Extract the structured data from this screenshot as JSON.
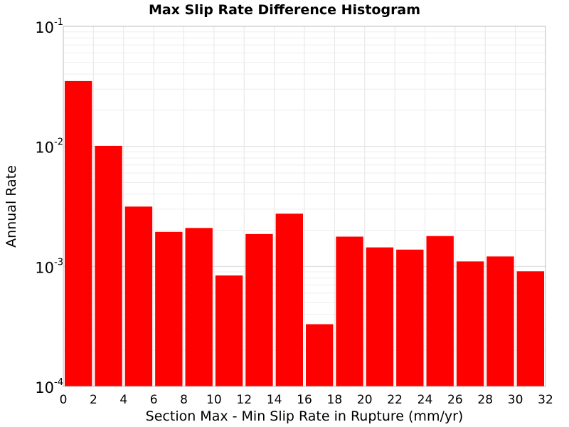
{
  "chart_data": {
    "type": "bar",
    "title": "Max Slip Rate Difference Histogram",
    "xlabel": "Section Max - Min Slip Rate in Rupture (mm/yr)",
    "ylabel": "Annual Rate",
    "y_scale": "log",
    "xlim": [
      0,
      32
    ],
    "ylim": [
      0.0001,
      0.1
    ],
    "bin_width": 2,
    "x": [
      1,
      3,
      5,
      7,
      9,
      11,
      13,
      15,
      17,
      19,
      21,
      23,
      25,
      27,
      29,
      31
    ],
    "values": [
      0.035,
      0.0101,
      0.00315,
      0.00194,
      0.00209,
      0.00084,
      0.00186,
      0.00275,
      0.00033,
      0.00177,
      0.00144,
      0.00138,
      0.00179,
      0.0011,
      0.00121,
      0.00091
    ],
    "color": "#ff0000",
    "xticks": [
      "0",
      "2",
      "4",
      "6",
      "8",
      "10",
      "12",
      "14",
      "16",
      "18",
      "20",
      "22",
      "24",
      "26",
      "28",
      "30",
      "32"
    ],
    "xtick_values": [
      0,
      2,
      4,
      6,
      8,
      10,
      12,
      14,
      16,
      18,
      20,
      22,
      24,
      26,
      28,
      30,
      32
    ],
    "yticks": [
      {
        "value": 0.1,
        "base": "10",
        "exp": "-1"
      },
      {
        "value": 0.01,
        "base": "10",
        "exp": "-2"
      },
      {
        "value": 0.001,
        "base": "10",
        "exp": "-3"
      },
      {
        "value": 0.0001,
        "base": "10",
        "exp": "-4"
      }
    ],
    "grid": true,
    "legend": "none"
  }
}
